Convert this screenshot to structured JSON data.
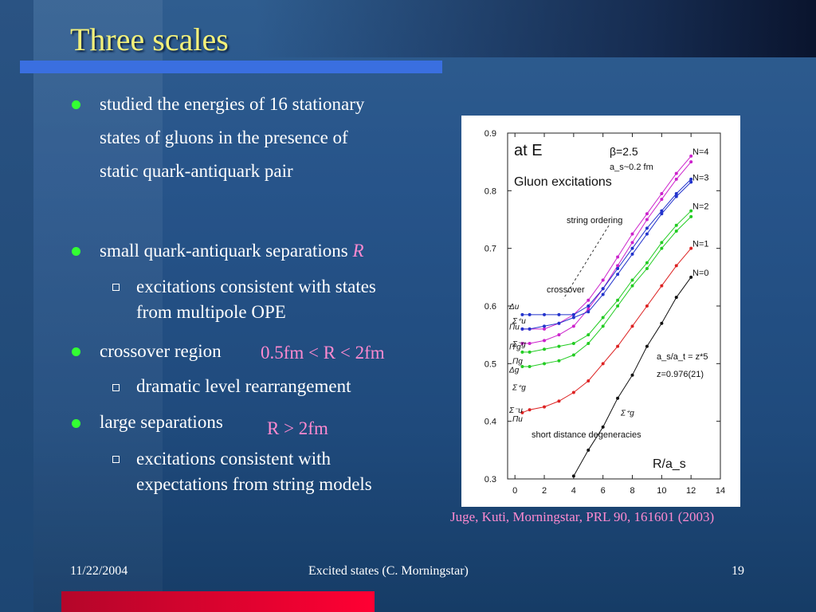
{
  "slide": {
    "title": "Three scales",
    "bullets": {
      "b1": "studied the energies of 16 stationary states of gluons in the presence of static quark-antiquark pair",
      "b1_lines": [
        "studied the energies of 16 stationary",
        "states of gluons in the presence of",
        "static quark-antiquark pair"
      ],
      "b2_text": "small quark-antiquark separations",
      "b2_math": "R",
      "b2_sub_lines": [
        "excitations consistent with states",
        "from multipole OPE"
      ],
      "b3_text": "crossover region",
      "b3_math": "0.5fm < R < 2fm",
      "b3_sub": "dramatic level rearrangement",
      "b4_text": "large separations",
      "b4_math": "R > 2fm",
      "b4_sub_lines": [
        "excitations consistent with",
        "expectations from string models"
      ]
    },
    "caption": "Juge, Kuti, Morningstar, PRL 90, 161601 (2003)",
    "footer": {
      "date": "11/22/2004",
      "center": "Excited states (C. Morningstar)",
      "page": "19"
    }
  },
  "colors": {
    "title": "#f2f07a",
    "bullet": "#33ff33",
    "pink": "#ff8ad0",
    "accent_bar": "#3a6fe0",
    "bottom_bar": "#ff0033"
  },
  "chart_data": {
    "type": "line",
    "title": "Gluon excitations",
    "ylabel": "a_t E_Γ",
    "xlabel": "R/a_s",
    "xlim": [
      -0.5,
      14
    ],
    "ylim": [
      0.3,
      0.9
    ],
    "xticks": [
      "0",
      "2",
      "4",
      "6",
      "8",
      "10",
      "12",
      "14"
    ],
    "yticks": [
      "0.3",
      "0.4",
      "0.5",
      "0.6",
      "0.7",
      "0.8",
      "0.9"
    ],
    "annotations": {
      "beta": "β=2.5",
      "as": "a_s~0.2 fm",
      "aniso": "a_s/a_t = z*5",
      "z": "z=0.976(21)",
      "string_ordering": "string ordering",
      "crossover": "crossover",
      "short_distance": "short distance degeneracies",
      "level_labels": [
        "N=4",
        "N=3",
        "N=2",
        "N=1",
        "N=0"
      ],
      "state_labels": [
        "Δu",
        "Σ⁺u",
        "Πu",
        "Σ⁻g",
        "Π′g",
        "Πg",
        "Δg",
        "Σ⁺g",
        "Σ⁻u",
        "Πu",
        "Σ⁺g"
      ]
    },
    "series": [
      {
        "name": "N=4",
        "color": "#cc22cc",
        "x": [
          0.5,
          1,
          2,
          3,
          4,
          5,
          6,
          7,
          8,
          9,
          10,
          11,
          12
        ],
        "y": [
          0.56,
          0.56,
          0.56,
          0.57,
          0.585,
          0.61,
          0.645,
          0.685,
          0.725,
          0.76,
          0.795,
          0.83,
          0.86
        ]
      },
      {
        "name": "N=4",
        "color": "#cc22cc",
        "x": [
          0.5,
          1,
          2,
          3,
          4,
          5,
          6,
          7,
          8,
          9,
          10,
          11,
          12
        ],
        "y": [
          0.535,
          0.535,
          0.54,
          0.55,
          0.565,
          0.595,
          0.63,
          0.67,
          0.71,
          0.75,
          0.785,
          0.82,
          0.85
        ]
      },
      {
        "name": "N=3",
        "color": "#2233cc",
        "x": [
          0.5,
          1,
          2,
          3,
          4,
          5,
          6,
          7,
          8,
          9,
          10,
          11,
          12
        ],
        "y": [
          0.585,
          0.585,
          0.585,
          0.585,
          0.585,
          0.6,
          0.63,
          0.665,
          0.7,
          0.735,
          0.765,
          0.795,
          0.82
        ]
      },
      {
        "name": "N=3",
        "color": "#2233cc",
        "x": [
          0.5,
          1,
          2,
          3,
          4,
          5,
          6,
          7,
          8,
          9,
          10,
          11,
          12
        ],
        "y": [
          0.56,
          0.56,
          0.565,
          0.57,
          0.58,
          0.59,
          0.62,
          0.655,
          0.69,
          0.725,
          0.76,
          0.79,
          0.815
        ]
      },
      {
        "name": "N=2",
        "color": "#22cc22",
        "x": [
          0.5,
          1,
          2,
          3,
          4,
          5,
          6,
          7,
          8,
          9,
          10,
          11,
          12
        ],
        "y": [
          0.52,
          0.52,
          0.525,
          0.53,
          0.535,
          0.55,
          0.58,
          0.61,
          0.645,
          0.675,
          0.71,
          0.74,
          0.765
        ]
      },
      {
        "name": "N=2",
        "color": "#22cc22",
        "x": [
          0.5,
          1,
          2,
          3,
          4,
          5,
          6,
          7,
          8,
          9,
          10,
          11,
          12
        ],
        "y": [
          0.495,
          0.495,
          0.5,
          0.505,
          0.515,
          0.535,
          0.565,
          0.6,
          0.635,
          0.665,
          0.7,
          0.73,
          0.755
        ]
      },
      {
        "name": "N=1",
        "color": "#dd2222",
        "x": [
          0.5,
          1,
          2,
          3,
          4,
          5,
          6,
          7,
          8,
          9,
          10,
          11,
          12
        ],
        "y": [
          0.415,
          0.42,
          0.425,
          0.435,
          0.45,
          0.47,
          0.5,
          0.53,
          0.565,
          0.6,
          0.635,
          0.67,
          0.7
        ]
      },
      {
        "name": "N=0",
        "color": "#111111",
        "x": [
          4,
          5,
          6,
          7,
          8,
          9,
          10,
          11,
          12
        ],
        "y": [
          0.305,
          0.35,
          0.39,
          0.44,
          0.48,
          0.53,
          0.57,
          0.615,
          0.65
        ]
      }
    ]
  }
}
